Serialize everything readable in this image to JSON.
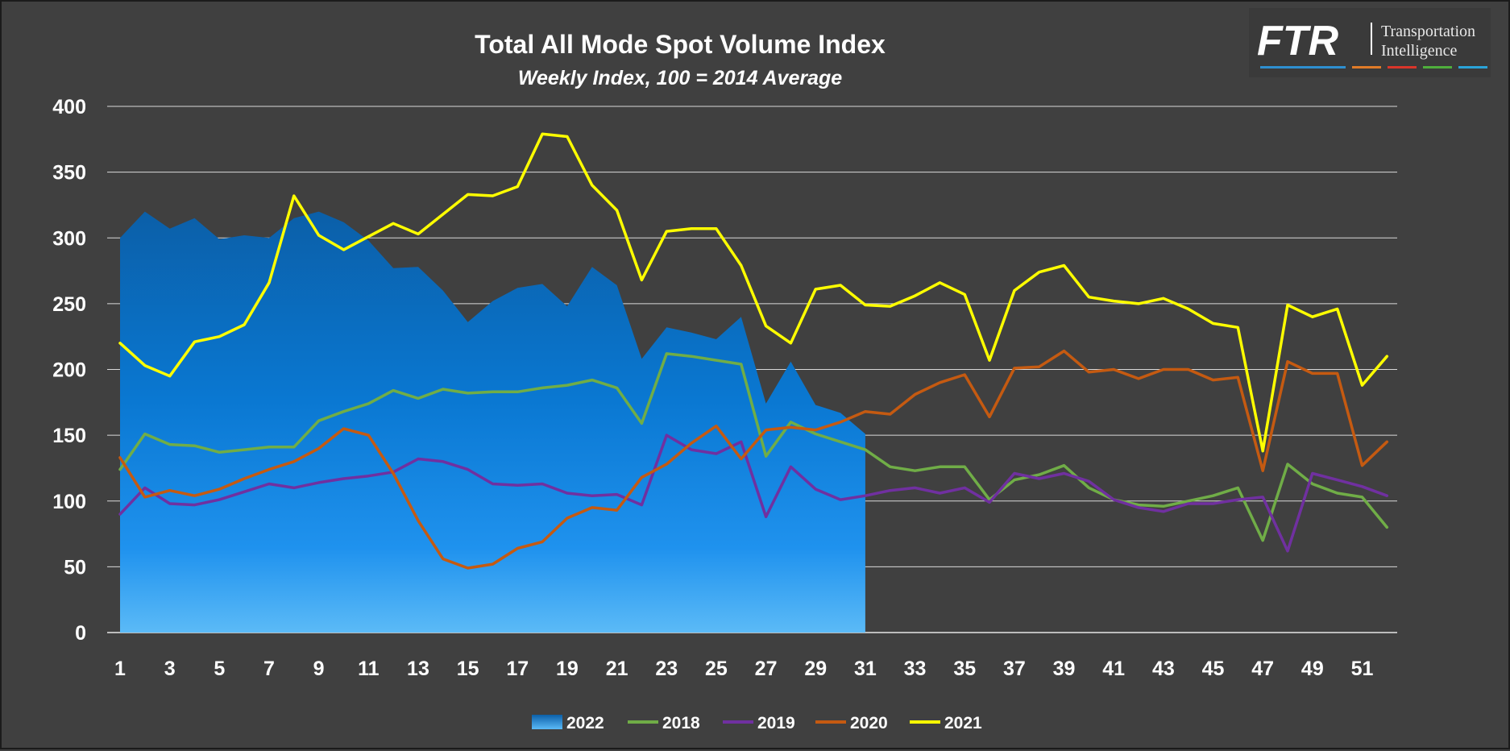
{
  "logo": {
    "mark": "FTR",
    "line1": "Transportation",
    "line2": "Intelligence",
    "stripe_colors": [
      "#2e8fd0",
      "#e07b28",
      "#d9352a",
      "#4fae3c",
      "#2aa3d8"
    ]
  },
  "chart_data": {
    "type": "line",
    "title": "Total All Mode Spot Volume Index",
    "subtitle": "Weekly Index, 100 = 2014 Average",
    "xlabel": "",
    "ylabel": "",
    "xlim": [
      1,
      52
    ],
    "ylim": [
      0,
      400
    ],
    "x_ticks": [
      1,
      3,
      5,
      7,
      9,
      11,
      13,
      15,
      17,
      19,
      21,
      23,
      25,
      27,
      29,
      31,
      33,
      35,
      37,
      39,
      41,
      43,
      45,
      47,
      49,
      51
    ],
    "y_ticks": [
      0,
      50,
      100,
      150,
      200,
      250,
      300,
      350,
      400
    ],
    "grid": true,
    "legend_position": "bottom",
    "series": [
      {
        "name": "2022",
        "kind": "area",
        "color": "#1a8ae0",
        "values": [
          300,
          320,
          307,
          315,
          299,
          302,
          300,
          315,
          320,
          312,
          298,
          277,
          278,
          260,
          236,
          252,
          262,
          265,
          248,
          278,
          264,
          208,
          232,
          228,
          223,
          240,
          174,
          206,
          173,
          167,
          151
        ]
      },
      {
        "name": "2018",
        "kind": "line",
        "color": "#70ad47",
        "values": [
          124,
          151,
          143,
          142,
          137,
          139,
          141,
          141,
          161,
          168,
          174,
          184,
          178,
          185,
          182,
          183,
          183,
          186,
          188,
          192,
          186,
          159,
          212,
          210,
          207,
          204,
          134,
          160,
          151,
          145,
          139,
          126,
          123,
          126,
          126,
          101,
          116,
          120,
          127,
          110,
          101,
          97,
          96,
          100,
          104,
          110,
          70,
          128,
          113,
          106,
          103,
          80
        ]
      },
      {
        "name": "2019",
        "kind": "line",
        "color": "#7030a0",
        "values": [
          90,
          110,
          98,
          97,
          101,
          107,
          113,
          110,
          114,
          117,
          119,
          122,
          132,
          130,
          124,
          113,
          112,
          113,
          106,
          104,
          105,
          97,
          150,
          139,
          136,
          145,
          88,
          126,
          109,
          101,
          104,
          108,
          110,
          106,
          110,
          99,
          121,
          117,
          121,
          115,
          101,
          95,
          92,
          98,
          98,
          101,
          103,
          62,
          121,
          116,
          111,
          104
        ]
      },
      {
        "name": "2020",
        "kind": "line",
        "color": "#c55a11",
        "values": [
          133,
          103,
          108,
          104,
          109,
          117,
          124,
          130,
          140,
          155,
          150,
          121,
          85,
          56,
          49,
          52,
          64,
          69,
          87,
          95,
          93,
          118,
          128,
          144,
          157,
          132,
          154,
          156,
          154,
          160,
          168,
          166,
          181,
          190,
          196,
          164,
          201,
          202,
          214,
          198,
          200,
          193,
          200,
          200,
          192,
          194,
          123,
          206,
          197,
          197,
          127,
          145
        ]
      },
      {
        "name": "2021",
        "kind": "line",
        "color": "#ffff00",
        "values": [
          220,
          203,
          195,
          221,
          225,
          234,
          266,
          332,
          302,
          291,
          301,
          311,
          303,
          318,
          333,
          332,
          339,
          379,
          377,
          340,
          321,
          268,
          305,
          307,
          307,
          279,
          233,
          220,
          261,
          264,
          249,
          248,
          256,
          266,
          257,
          207,
          260,
          274,
          279,
          255,
          252,
          250,
          254,
          246,
          235,
          232,
          138,
          249,
          240,
          246,
          188,
          210
        ]
      }
    ]
  }
}
